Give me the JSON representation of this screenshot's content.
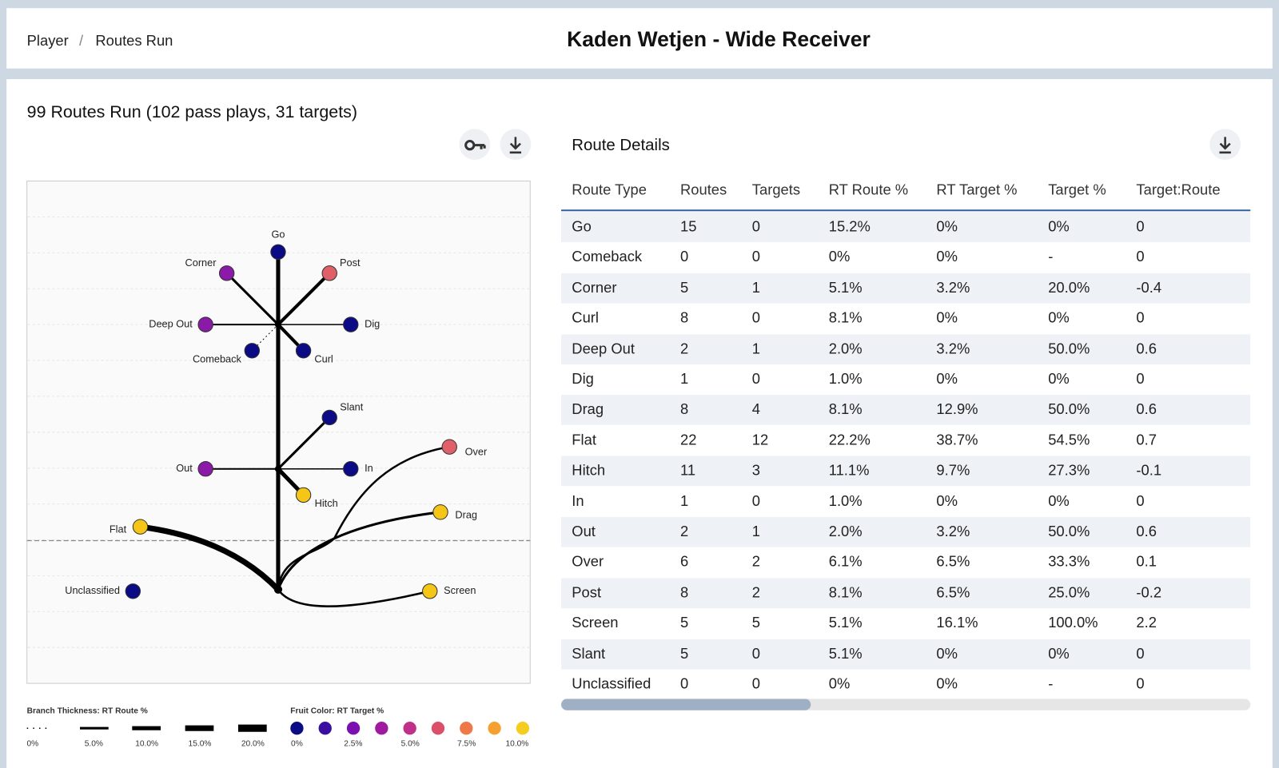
{
  "header": {
    "breadcrumb": [
      "Player",
      "Routes Run"
    ],
    "separator": "/",
    "title": "Kaden Wetjen - Wide Receiver"
  },
  "summary": "99 Routes Run (102 pass plays, 31 targets)",
  "tree": {
    "labels": [
      "Go",
      "Corner",
      "Post",
      "Deep Out",
      "Dig",
      "Comeback",
      "Curl",
      "Slant",
      "Out",
      "In",
      "Hitch",
      "Flat",
      "Over",
      "Drag",
      "Screen",
      "Unclassified"
    ]
  },
  "legend": {
    "thickness_title": "Branch Thickness: RT Route %",
    "thickness_labels": [
      "0%",
      "5.0%",
      "10.0%",
      "15.0%",
      "20.0%"
    ],
    "color_title": "Fruit Color: RT Target %",
    "color_labels": [
      "0%",
      "2.5%",
      "5.0%",
      "7.5%",
      "10.0%"
    ]
  },
  "details": {
    "title": "Route Details",
    "columns": [
      "Route Type",
      "Routes",
      "Targets",
      "RT Route %",
      "RT Target %",
      "Target %",
      "Target:Route"
    ],
    "rows": [
      [
        "Go",
        "15",
        "0",
        "15.2%",
        "0%",
        "0%",
        "0"
      ],
      [
        "Comeback",
        "0",
        "0",
        "0%",
        "0%",
        "-",
        "0"
      ],
      [
        "Corner",
        "5",
        "1",
        "5.1%",
        "3.2%",
        "20.0%",
        "-0.4"
      ],
      [
        "Curl",
        "8",
        "0",
        "8.1%",
        "0%",
        "0%",
        "0"
      ],
      [
        "Deep Out",
        "2",
        "1",
        "2.0%",
        "3.2%",
        "50.0%",
        "0.6"
      ],
      [
        "Dig",
        "1",
        "0",
        "1.0%",
        "0%",
        "0%",
        "0"
      ],
      [
        "Drag",
        "8",
        "4",
        "8.1%",
        "12.9%",
        "50.0%",
        "0.6"
      ],
      [
        "Flat",
        "22",
        "12",
        "22.2%",
        "38.7%",
        "54.5%",
        "0.7"
      ],
      [
        "Hitch",
        "11",
        "3",
        "11.1%",
        "9.7%",
        "27.3%",
        "-0.1"
      ],
      [
        "In",
        "1",
        "0",
        "1.0%",
        "0%",
        "0%",
        "0"
      ],
      [
        "Out",
        "2",
        "1",
        "2.0%",
        "3.2%",
        "50.0%",
        "0.6"
      ],
      [
        "Over",
        "6",
        "2",
        "6.1%",
        "6.5%",
        "33.3%",
        "0.1"
      ],
      [
        "Post",
        "8",
        "2",
        "8.1%",
        "6.5%",
        "25.0%",
        "-0.2"
      ],
      [
        "Screen",
        "5",
        "5",
        "5.1%",
        "16.1%",
        "100.0%",
        "2.2"
      ],
      [
        "Slant",
        "5",
        "0",
        "5.1%",
        "0%",
        "0%",
        "0"
      ],
      [
        "Unclassified",
        "0",
        "0",
        "0%",
        "0%",
        "-",
        "0"
      ]
    ]
  }
}
